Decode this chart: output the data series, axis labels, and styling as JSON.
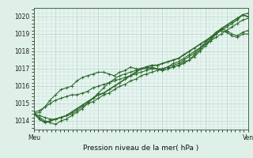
{
  "xlabel_bottom": "Pression niveau de la mer( hPa )",
  "xtick_labels": [
    "Meu",
    "Ven"
  ],
  "ylim": [
    1013.5,
    1020.5
  ],
  "yticks": [
    1014,
    1015,
    1016,
    1017,
    1018,
    1019,
    1020
  ],
  "bg_color": "#e8f5f0",
  "grid_color": "#a8cfc0",
  "line_color": "#2d6a2d",
  "fig_bg": "#dff0e8",
  "line1_y": [
    1014.4,
    1014.1,
    1013.9,
    1014.0,
    1014.1,
    1014.2,
    1014.3,
    1014.5,
    1014.7,
    1014.9,
    1015.1,
    1015.3,
    1015.5,
    1015.6,
    1015.8,
    1016.0,
    1016.2,
    1016.4,
    1016.6,
    1016.8,
    1017.0,
    1017.1,
    1017.2,
    1017.2,
    1017.3,
    1017.4,
    1017.5,
    1017.6,
    1017.8,
    1018.0,
    1018.2,
    1018.4,
    1018.6,
    1018.8,
    1019.0,
    1019.3,
    1019.5,
    1019.7,
    1019.9,
    1020.1,
    1020.0
  ],
  "line2_y": [
    1014.4,
    1014.2,
    1014.0,
    1013.9,
    1013.8,
    1014.0,
    1014.1,
    1014.3,
    1014.5,
    1014.7,
    1015.0,
    1015.3,
    1015.6,
    1015.9,
    1016.2,
    1016.4,
    1016.6,
    1016.7,
    1016.8,
    1016.9,
    1017.0,
    1017.1,
    1017.0,
    1017.0,
    1016.9,
    1017.0,
    1017.1,
    1017.2,
    1017.3,
    1017.5,
    1017.8,
    1018.1,
    1018.4,
    1018.7,
    1019.0,
    1019.2,
    1019.1,
    1018.9,
    1018.8,
    1019.0,
    1019.0
  ],
  "line3_y": [
    1014.4,
    1014.5,
    1014.8,
    1015.2,
    1015.5,
    1015.8,
    1015.9,
    1016.0,
    1016.3,
    1016.5,
    1016.6,
    1016.7,
    1016.8,
    1016.8,
    1016.7,
    1016.6,
    1016.8,
    1016.9,
    1017.1,
    1017.0,
    1017.0,
    1017.0,
    1017.1,
    1017.0,
    1016.9,
    1017.0,
    1017.1,
    1017.2,
    1017.4,
    1017.5,
    1017.7,
    1018.0,
    1018.3,
    1018.6,
    1019.0,
    1019.2,
    1019.4,
    1019.6,
    1019.8,
    1020.1,
    1020.2
  ],
  "line4_y": [
    1014.4,
    1014.3,
    1014.2,
    1014.1,
    1014.1,
    1014.2,
    1014.3,
    1014.4,
    1014.6,
    1014.8,
    1015.0,
    1015.1,
    1015.3,
    1015.5,
    1015.6,
    1015.8,
    1016.0,
    1016.1,
    1016.3,
    1016.4,
    1016.6,
    1016.7,
    1016.8,
    1016.9,
    1017.0,
    1017.1,
    1017.3,
    1017.4,
    1017.6,
    1017.8,
    1018.0,
    1018.2,
    1018.4,
    1018.6,
    1018.8,
    1019.0,
    1019.2,
    1019.4,
    1019.6,
    1019.8,
    1019.9
  ],
  "line5_y": [
    1014.5,
    1014.6,
    1014.8,
    1015.0,
    1015.2,
    1015.3,
    1015.4,
    1015.5,
    1015.5,
    1015.6,
    1015.7,
    1015.9,
    1016.0,
    1016.1,
    1016.2,
    1016.3,
    1016.4,
    1016.5,
    1016.6,
    1016.7,
    1016.8,
    1016.9,
    1017.0,
    1017.0,
    1017.0,
    1017.1,
    1017.2,
    1017.3,
    1017.5,
    1017.7,
    1017.9,
    1018.2,
    1018.5,
    1018.8,
    1019.1,
    1019.3,
    1019.2,
    1019.0,
    1018.9,
    1019.1,
    1019.2
  ]
}
